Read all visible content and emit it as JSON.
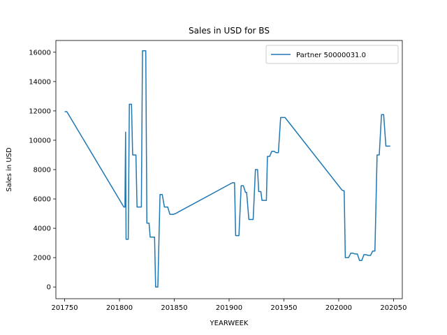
{
  "chart_data": {
    "type": "line",
    "title": "Sales in USD for BS",
    "xlabel": "YEARWEEK",
    "ylabel": "Sales in USD",
    "xlim": [
      201742,
      202058
    ],
    "ylim": [
      -800,
      16800
    ],
    "grid": false,
    "legend_position": "top-right",
    "x_ticks": [
      201750,
      201800,
      201850,
      201900,
      201950,
      202000,
      202050
    ],
    "y_ticks": [
      0,
      2000,
      4000,
      6000,
      8000,
      10000,
      12000,
      14000,
      16000
    ],
    "x_tick_labels": [
      "201750",
      "201800",
      "201850",
      "201900",
      "201950",
      "202000",
      "202050"
    ],
    "y_tick_labels": [
      "0",
      "2000",
      "4000",
      "6000",
      "8000",
      "10000",
      "12000",
      "14000",
      "16000"
    ],
    "series": [
      {
        "name": "Partner 50000031.0",
        "color": "#1f77b4",
        "x": [
          201750,
          201752,
          201804,
          201805,
          201805.6,
          201806,
          201808,
          201809,
          201811,
          201812,
          201813,
          201815,
          201816,
          201818,
          201820,
          201821,
          201822,
          201824,
          201825,
          201827,
          201828,
          201830,
          201832,
          201833,
          201835,
          201837,
          201839,
          201841,
          201843,
          201844,
          201846,
          201848,
          201849,
          201851,
          201903,
          201905,
          201906,
          201908,
          201909,
          201911,
          201913,
          201915,
          201916,
          201918,
          201920,
          201922,
          201924,
          201926,
          201927,
          201929,
          201930,
          201932,
          201934,
          201935,
          201937,
          201939,
          201941,
          201943,
          201945,
          201947,
          201949,
          201951,
          202003,
          202005,
          202006,
          202008,
          202009,
          202011,
          202013,
          202015,
          202017,
          202019,
          202021,
          202023,
          202025,
          202027,
          202029,
          202031,
          202033,
          202035,
          202037,
          202039,
          202041,
          202043,
          202045,
          202047
        ],
        "y": [
          11950,
          11950,
          5450,
          5450,
          10550,
          3250,
          3250,
          12450,
          12450,
          9000,
          9000,
          9000,
          5450,
          5450,
          5450,
          16100,
          16100,
          16100,
          4350,
          4350,
          3400,
          3400,
          3400,
          0,
          0,
          6300,
          6300,
          5450,
          5450,
          5450,
          4950,
          4950,
          4950,
          5000,
          7100,
          7100,
          3500,
          3500,
          3500,
          6900,
          6900,
          6450,
          6450,
          4600,
          4600,
          4600,
          8000,
          8000,
          6500,
          6500,
          5900,
          5900,
          5900,
          8900,
          8900,
          9250,
          9250,
          9150,
          9150,
          11550,
          11550,
          11550,
          6600,
          6550,
          2000,
          2000,
          2000,
          2300,
          2300,
          2250,
          2250,
          1800,
          1800,
          2200,
          2200,
          2150,
          2150,
          2450,
          2450,
          9000,
          9000,
          11750,
          11750,
          9600,
          9600,
          9600
        ]
      }
    ]
  }
}
